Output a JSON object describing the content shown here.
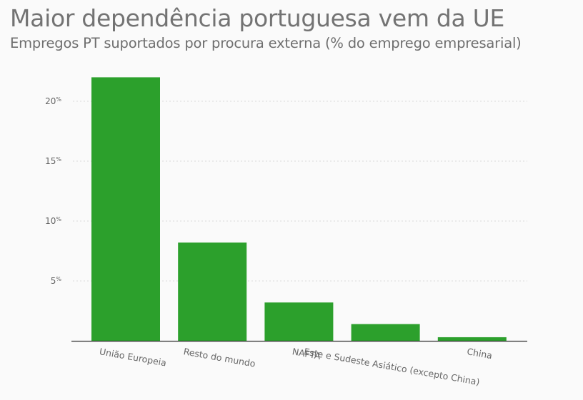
{
  "header": {
    "title": "Maior dependência portuguesa vem da UE",
    "subtitle": "Empregos PT suportados por procura externa (% do emprego empresarial)"
  },
  "chart_data": {
    "type": "bar",
    "categories": [
      "União Europeia",
      "Resto do mundo",
      "NAFTA",
      "Este e Sudeste Asiático (excepto China)",
      "China"
    ],
    "values": [
      22,
      8.2,
      3.2,
      1.4,
      0.3
    ],
    "yticks": [
      5,
      10,
      15,
      20
    ],
    "ytick_suffix": "%",
    "ylim": [
      0,
      22
    ],
    "grid": true,
    "bar_color": "#2ca02c"
  }
}
